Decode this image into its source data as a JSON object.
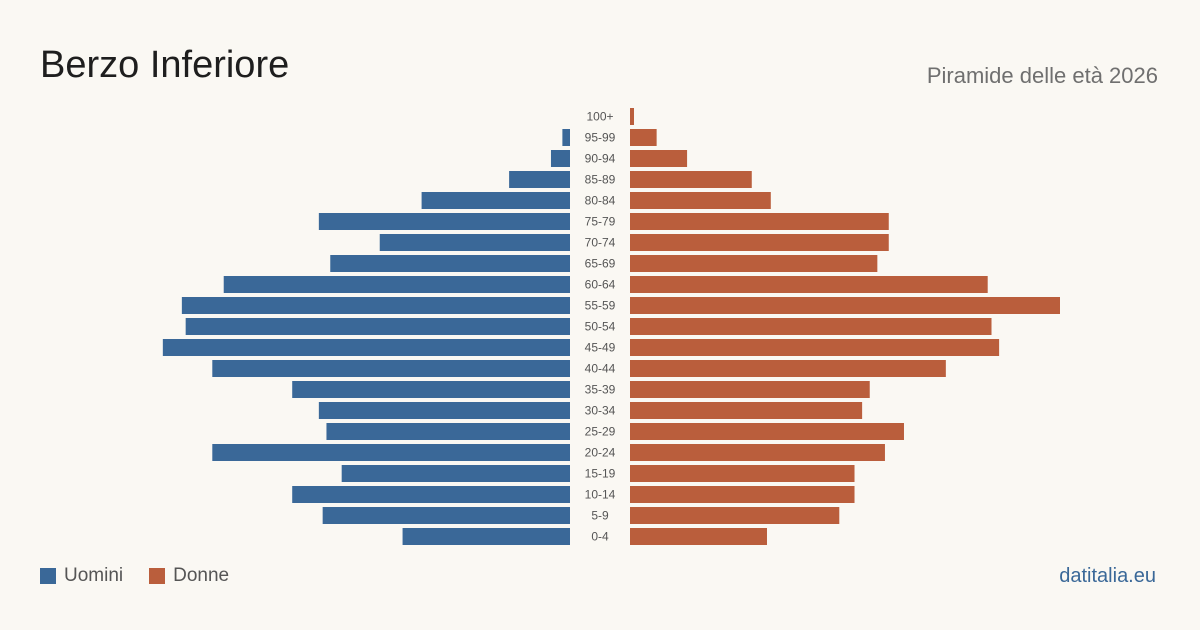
{
  "header": {
    "title": "Berzo Inferiore",
    "subtitle": "Piramide delle età 2026"
  },
  "legend": {
    "men_label": "Uomini",
    "women_label": "Donne"
  },
  "brand": "datitalia.eu",
  "colors": {
    "men": "#3a6898",
    "women": "#ba5e3c",
    "background": "#faf8f3"
  },
  "chart_data": {
    "type": "bar",
    "orientation": "horizontal-pyramid",
    "categories": [
      "100+",
      "95-99",
      "90-94",
      "85-89",
      "80-84",
      "75-79",
      "70-74",
      "65-69",
      "60-64",
      "55-59",
      "50-54",
      "45-49",
      "40-44",
      "35-39",
      "30-34",
      "25-29",
      "20-24",
      "15-19",
      "10-14",
      "5-9",
      "0-4"
    ],
    "series": [
      {
        "name": "Uomini",
        "values": [
          0,
          2,
          5,
          16,
          39,
          66,
          50,
          63,
          91,
          102,
          101,
          107,
          94,
          73,
          66,
          64,
          94,
          60,
          73,
          65,
          44
        ]
      },
      {
        "name": "Donne",
        "values": [
          1,
          7,
          15,
          32,
          37,
          68,
          68,
          65,
          94,
          113,
          95,
          97,
          83,
          63,
          61,
          72,
          67,
          59,
          59,
          55,
          36
        ]
      }
    ],
    "xlim": [
      0,
      113
    ]
  }
}
